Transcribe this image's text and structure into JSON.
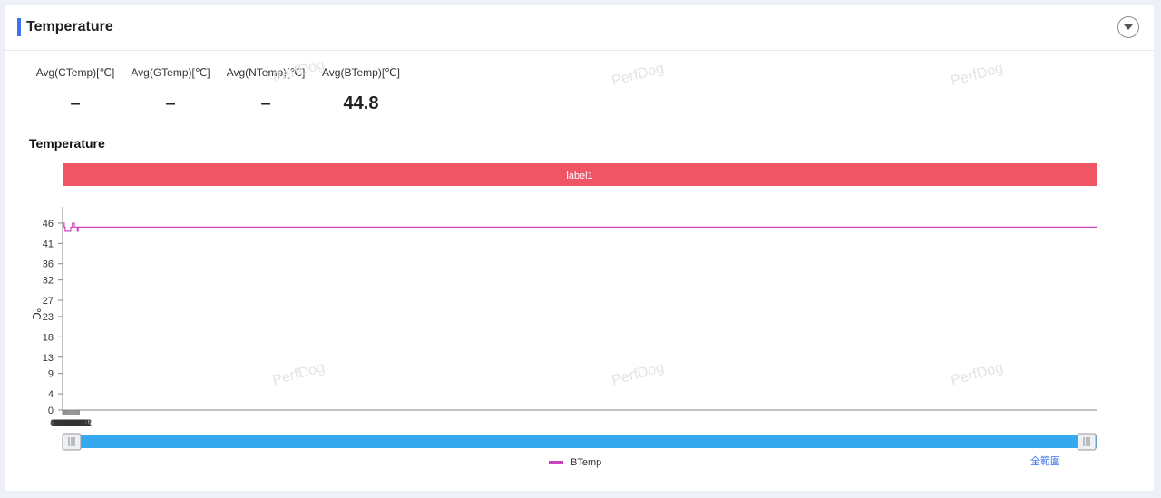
{
  "header": {
    "title": "Temperature"
  },
  "stats": [
    {
      "label": "Avg(CTemp)[℃]",
      "value": "–"
    },
    {
      "label": "Avg(GTemp)[℃]",
      "value": "–"
    },
    {
      "label": "Avg(NTemp)[℃]",
      "value": "–"
    },
    {
      "label": "Avg(BTemp)[℃]",
      "value": "44.8"
    }
  ],
  "chart_title": "Temperature",
  "watermark_text": "PerfDog",
  "colors": {
    "accent": "#3b73f0",
    "label_band": "#f05565",
    "series": "#cc44bb",
    "slider": "#35a8ee"
  },
  "icons": {
    "collapse": "chevron-down-icon"
  },
  "zoom": {
    "start_percent": 0,
    "end_percent": 100,
    "reset_label": "全範圍"
  },
  "chart_data": {
    "type": "line",
    "title": "Temperature",
    "ylabel": "℃",
    "xlabel": "",
    "band_label": "label1",
    "ylim": [
      0,
      50
    ],
    "yticks": [
      0,
      4,
      9,
      13,
      18,
      23,
      27,
      32,
      36,
      41,
      46
    ],
    "xlim": [
      0,
      818
    ],
    "xticks": [
      "00:00",
      "00:44",
      "01:28",
      "02:12",
      "02:56",
      "03:40",
      "04:24",
      "05:08",
      "05:52",
      "06:36",
      "07:20",
      "08:04",
      "08:48",
      "09:32",
      "10:16",
      "11:00",
      "11:44",
      "12:28",
      "13:12"
    ],
    "legend_position": "bottom",
    "series": [
      {
        "name": "BTemp",
        "x": [
          "00:00",
          "01:20",
          "02:01",
          "06:25",
          "07:46",
          "09:18",
          "11:41",
          "12:22",
          "13:38"
        ],
        "y": [
          46,
          45,
          44,
          45,
          46,
          45,
          44,
          45,
          45
        ]
      }
    ]
  }
}
